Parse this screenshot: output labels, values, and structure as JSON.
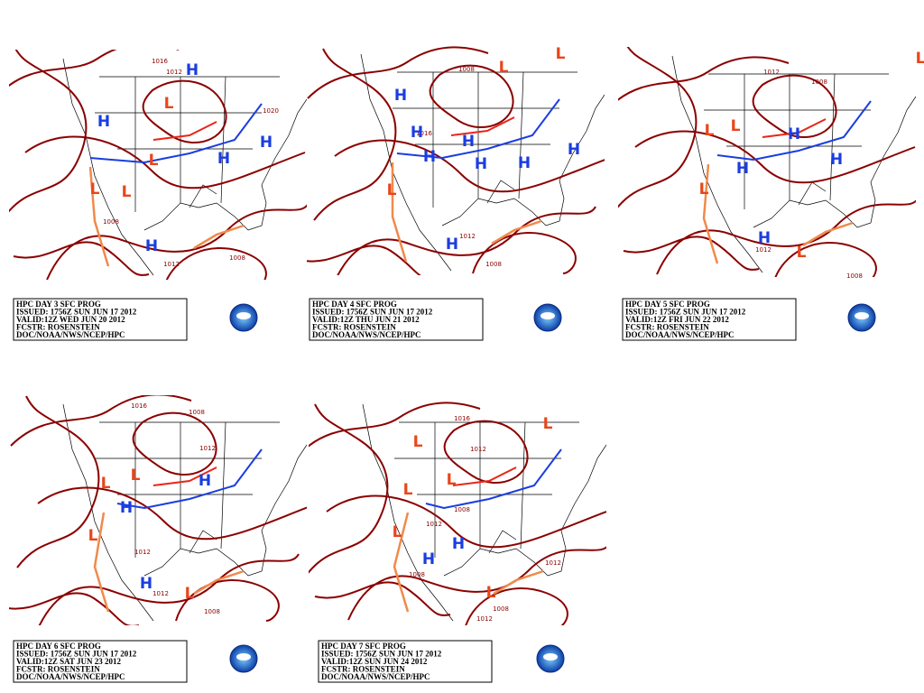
{
  "panels": [
    {
      "info": [
        "HPC DAY 3 SFC PROG",
        "ISSUED: 1756Z SUN JUN 17 2012",
        "VALID:12Z WED JUN 20 2012",
        "FCSTR: ROSENSTEIN",
        "DOC/NOAA/NWS/NCEP/HPC"
      ],
      "centers": [
        "H",
        "H",
        "H",
        "H",
        "H",
        "L",
        "L",
        "L",
        "L"
      ],
      "isobars": [
        "1016",
        "1012",
        "1020",
        "1008",
        "1012",
        "1008"
      ]
    },
    {
      "info": [
        "HPC DAY 4 SFC PROG",
        "ISSUED: 1756Z SUN JUN 17 2012",
        "VALID:12Z THU JUN 21 2012",
        "FCSTR: ROSENSTEIN",
        "DOC/NOAA/NWS/NCEP/HPC"
      ],
      "centers": [
        "H",
        "H",
        "H",
        "H",
        "H",
        "H",
        "H",
        "H",
        "L",
        "L",
        "L"
      ],
      "isobars": [
        "1008",
        "1016",
        "1012",
        "1008"
      ]
    },
    {
      "info": [
        "HPC DAY 5 SFC PROG",
        "ISSUED: 1756Z SUN JUN 17 2012",
        "VALID:12Z FRI JUN 22 2012",
        "FCSTR: ROSENSTEIN",
        "DOC/NOAA/NWS/NCEP/HPC"
      ],
      "centers": [
        "H",
        "H",
        "H",
        "H",
        "L",
        "L",
        "L",
        "L",
        "L"
      ],
      "isobars": [
        "1012",
        "1008",
        "1008",
        "1012"
      ]
    },
    {
      "info": [
        "HPC DAY 6 SFC PROG",
        "ISSUED: 1756Z SUN JUN 17 2012",
        "VALID:12Z SAT JUN 23 2012",
        "FCSTR: ROSENSTEIN",
        "DOC/NOAA/NWS/NCEP/HPC"
      ],
      "centers": [
        "H",
        "H",
        "H",
        "L",
        "L",
        "L",
        "L"
      ],
      "isobars": [
        "1016",
        "1008",
        "1012",
        "1012",
        "1012",
        "1008"
      ]
    },
    {
      "info": [
        "HPC DAY 7 SFC PROG",
        "ISSUED: 1756Z SUN JUN 17 2012",
        "VALID:12Z SUN JUN 24 2012",
        "FCSTR: ROSENSTEIN",
        "DOC/NOAA/NWS/NCEP/HPC"
      ],
      "centers": [
        "H",
        "H",
        "L",
        "L",
        "L",
        "L",
        "L",
        "L"
      ],
      "isobars": [
        "1016",
        "1012",
        "1008",
        "1012",
        "1008",
        "1012",
        "1008",
        "1012"
      ]
    }
  ]
}
